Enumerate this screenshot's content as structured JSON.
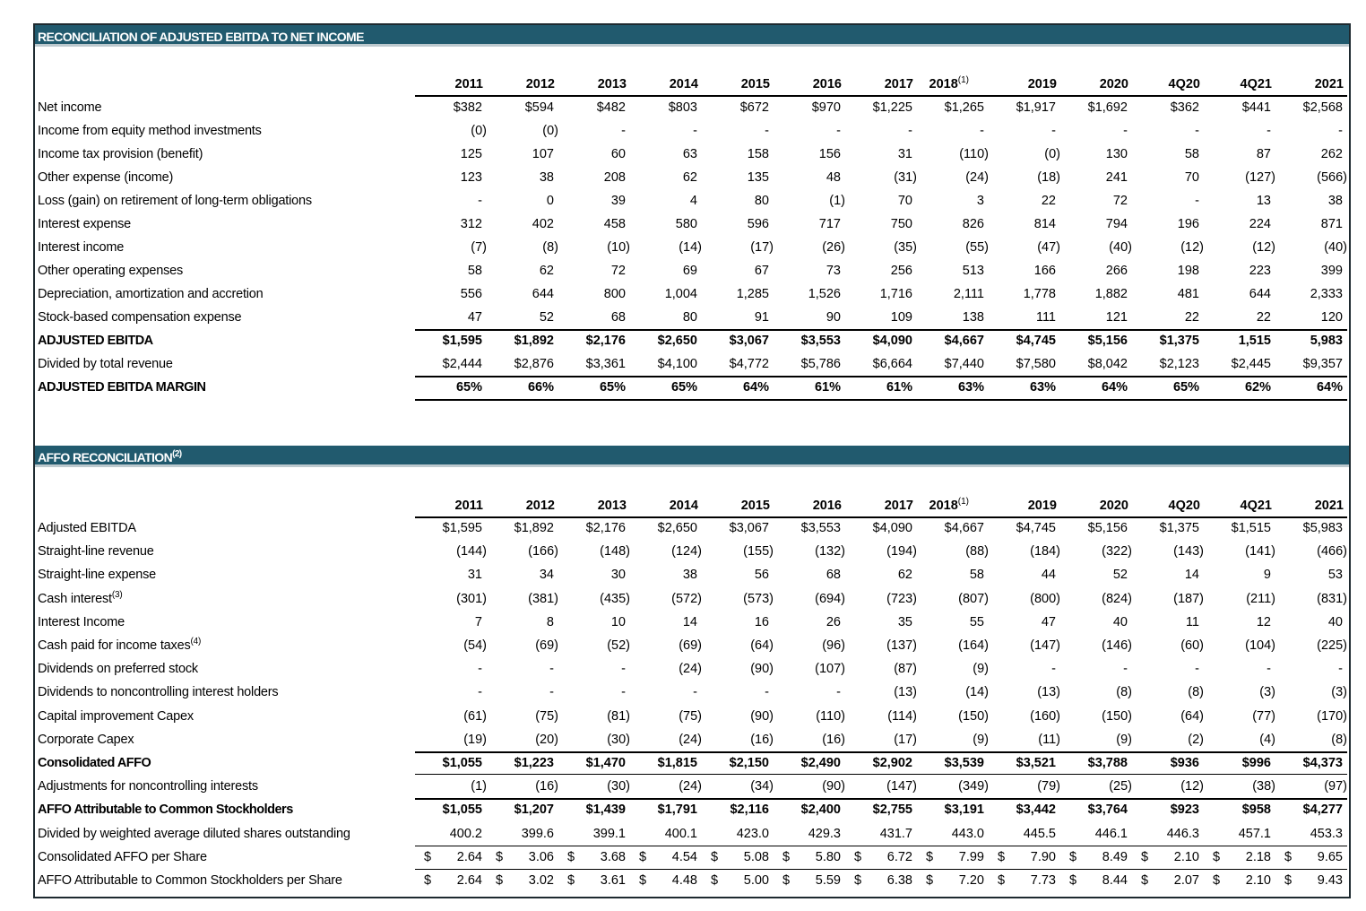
{
  "sections": [
    {
      "title": "RECONCILIATION OF ADJUSTED EBITDA TO NET INCOME",
      "columns": [
        {
          "label": "2011"
        },
        {
          "label": "2012"
        },
        {
          "label": "2013"
        },
        {
          "label": "2014"
        },
        {
          "label": "2015"
        },
        {
          "label": "2016"
        },
        {
          "label": "2017"
        },
        {
          "label": "2018",
          "note": "(1)"
        },
        {
          "label": "2019"
        },
        {
          "label": "2020"
        },
        {
          "label": "4Q20"
        },
        {
          "label": "4Q21"
        },
        {
          "label": "2021"
        }
      ],
      "rows": [
        {
          "label": "Net income",
          "values": [
            "$382",
            "$594",
            "$482",
            "$803",
            "$672",
            "$970",
            "$1,225",
            "$1,265",
            "$1,917",
            "$1,692",
            "$362",
            "$441",
            "$2,568"
          ]
        },
        {
          "label": "Income from equity method investments",
          "values": [
            "(0)",
            "(0)",
            "-",
            "-",
            "-",
            "-",
            "-",
            "-",
            "-",
            "-",
            "-",
            "-",
            "-"
          ]
        },
        {
          "label": "Income tax provision (benefit)",
          "values": [
            "125",
            "107",
            "60",
            "63",
            "158",
            "156",
            "31",
            "(110)",
            "(0)",
            "130",
            "58",
            "87",
            "262"
          ]
        },
        {
          "label": "Other expense (income)",
          "values": [
            "123",
            "38",
            "208",
            "62",
            "135",
            "48",
            "(31)",
            "(24)",
            "(18)",
            "241",
            "70",
            "(127)",
            "(566)"
          ]
        },
        {
          "label": "Loss (gain) on retirement of long-term obligations",
          "values": [
            "-",
            "0",
            "39",
            "4",
            "80",
            "(1)",
            "70",
            "3",
            "22",
            "72",
            "-",
            "13",
            "38"
          ]
        },
        {
          "label": "Interest expense",
          "values": [
            "312",
            "402",
            "458",
            "580",
            "596",
            "717",
            "750",
            "826",
            "814",
            "794",
            "196",
            "224",
            "871"
          ]
        },
        {
          "label": "Interest income",
          "values": [
            "(7)",
            "(8)",
            "(10)",
            "(14)",
            "(17)",
            "(26)",
            "(35)",
            "(55)",
            "(47)",
            "(40)",
            "(12)",
            "(12)",
            "(40)"
          ]
        },
        {
          "label": "Other operating expenses",
          "values": [
            "58",
            "62",
            "72",
            "69",
            "67",
            "73",
            "256",
            "513",
            "166",
            "266",
            "198",
            "223",
            "399"
          ]
        },
        {
          "label": "Depreciation, amortization and accretion",
          "values": [
            "556",
            "644",
            "800",
            "1,004",
            "1,285",
            "1,526",
            "1,716",
            "2,111",
            "1,778",
            "1,882",
            "481",
            "644",
            "2,333"
          ]
        },
        {
          "label": "Stock-based compensation expense",
          "values": [
            "47",
            "52",
            "68",
            "80",
            "91",
            "90",
            "109",
            "138",
            "111",
            "121",
            "22",
            "22",
            "120"
          ]
        },
        {
          "label": "ADJUSTED EBITDA",
          "bold": true,
          "values": [
            "$1,595",
            "$1,892",
            "$2,176",
            "$2,650",
            "$3,067",
            "$3,553",
            "$4,090",
            "$4,667",
            "$4,745",
            "$5,156",
            "$1,375",
            "1,515",
            "5,983"
          ]
        },
        {
          "label": "Divided by total revenue",
          "values": [
            "$2,444",
            "$2,876",
            "$3,361",
            "$4,100",
            "$4,772",
            "$5,786",
            "$6,664",
            "$7,440",
            "$7,580",
            "$8,042",
            "$2,123",
            "$2,445",
            "$9,357"
          ]
        },
        {
          "label": "ADJUSTED EBITDA MARGIN",
          "bold": true,
          "values": [
            "65%",
            "66%",
            "65%",
            "65%",
            "64%",
            "61%",
            "61%",
            "63%",
            "63%",
            "64%",
            "65%",
            "62%",
            "64%"
          ]
        }
      ]
    },
    {
      "title": "AFFO RECONCILIATION",
      "title_note": "(2)",
      "columns": [
        {
          "label": "2011"
        },
        {
          "label": "2012"
        },
        {
          "label": "2013"
        },
        {
          "label": "2014"
        },
        {
          "label": "2015"
        },
        {
          "label": "2016"
        },
        {
          "label": "2017"
        },
        {
          "label": "2018",
          "note": "(1)"
        },
        {
          "label": "2019"
        },
        {
          "label": "2020"
        },
        {
          "label": "4Q20"
        },
        {
          "label": "4Q21"
        },
        {
          "label": "2021"
        }
      ],
      "rows": [
        {
          "label": "Adjusted EBITDA",
          "values": [
            "$1,595",
            "$1,892",
            "$2,176",
            "$2,650",
            "$3,067",
            "$3,553",
            "$4,090",
            "$4,667",
            "$4,745",
            "$5,156",
            "$1,375",
            "$1,515",
            "$5,983"
          ]
        },
        {
          "label": "Straight-line revenue",
          "values": [
            "(144)",
            "(166)",
            "(148)",
            "(124)",
            "(155)",
            "(132)",
            "(194)",
            "(88)",
            "(184)",
            "(322)",
            "(143)",
            "(141)",
            "(466)"
          ]
        },
        {
          "label": "Straight-line expense",
          "values": [
            "31",
            "34",
            "30",
            "38",
            "56",
            "68",
            "62",
            "58",
            "44",
            "52",
            "14",
            "9",
            "53"
          ]
        },
        {
          "label": "Cash interest",
          "note": "(3)",
          "values": [
            "(301)",
            "(381)",
            "(435)",
            "(572)",
            "(573)",
            "(694)",
            "(723)",
            "(807)",
            "(800)",
            "(824)",
            "(187)",
            "(211)",
            "(831)"
          ]
        },
        {
          "label": "Interest Income",
          "values": [
            "7",
            "8",
            "10",
            "14",
            "16",
            "26",
            "35",
            "55",
            "47",
            "40",
            "11",
            "12",
            "40"
          ]
        },
        {
          "label": "Cash paid for income taxes",
          "note": "(4)",
          "values": [
            "(54)",
            "(69)",
            "(52)",
            "(69)",
            "(64)",
            "(96)",
            "(137)",
            "(164)",
            "(147)",
            "(146)",
            "(60)",
            "(104)",
            "(225)"
          ]
        },
        {
          "label": "Dividends on preferred stock",
          "values": [
            "-",
            "-",
            "-",
            "(24)",
            "(90)",
            "(107)",
            "(87)",
            "(9)",
            "-",
            "-",
            "-",
            "-",
            "-"
          ]
        },
        {
          "label": "Dividends to noncontrolling interest holders",
          "values": [
            "-",
            "-",
            "-",
            "-",
            "-",
            "-",
            "(13)",
            "(14)",
            "(13)",
            "(8)",
            "(8)",
            "(3)",
            "(3)"
          ]
        },
        {
          "label": "Capital improvement Capex",
          "values": [
            "(61)",
            "(75)",
            "(81)",
            "(75)",
            "(90)",
            "(110)",
            "(114)",
            "(150)",
            "(160)",
            "(150)",
            "(64)",
            "(77)",
            "(170)"
          ]
        },
        {
          "label": "Corporate Capex",
          "values": [
            "(19)",
            "(20)",
            "(30)",
            "(24)",
            "(16)",
            "(16)",
            "(17)",
            "(9)",
            "(11)",
            "(9)",
            "(2)",
            "(4)",
            "(8)"
          ]
        },
        {
          "label": "Consolidated AFFO",
          "bold": true,
          "values": [
            "$1,055",
            "$1,223",
            "$1,470",
            "$1,815",
            "$2,150",
            "$2,490",
            "$2,902",
            "$3,539",
            "$3,521",
            "$3,788",
            "$936",
            "$996",
            "$4,373"
          ]
        },
        {
          "label": "Adjustments for noncontrolling interests",
          "values": [
            "(1)",
            "(16)",
            "(30)",
            "(24)",
            "(34)",
            "(90)",
            "(147)",
            "(349)",
            "(79)",
            "(25)",
            "(12)",
            "(38)",
            "(97)"
          ]
        },
        {
          "label": "AFFO Attributable to Common Stockholders",
          "bold": true,
          "values": [
            "$1,055",
            "$1,207",
            "$1,439",
            "$1,791",
            "$2,116",
            "$2,400",
            "$2,755",
            "$3,191",
            "$3,442",
            "$3,764",
            "$923",
            "$958",
            "$4,277"
          ]
        },
        {
          "label": "Divided by weighted average diluted shares outstanding",
          "values": [
            "400.2",
            "399.6",
            "399.1",
            "400.1",
            "423.0",
            "429.3",
            "431.7",
            "443.0",
            "445.5",
            "446.1",
            "446.3",
            "457.1",
            "453.3"
          ]
        },
        {
          "label": "Consolidated AFFO per Share",
          "prefix": "$",
          "values": [
            "2.64",
            "3.06",
            "3.68",
            "4.54",
            "5.08",
            "5.80",
            "6.72",
            "7.99",
            "7.90",
            "8.49",
            "2.10",
            "2.18",
            "9.65"
          ]
        },
        {
          "label": "AFFO Attributable to Common Stockholders per Share",
          "prefix": "$",
          "values": [
            "2.64",
            "3.02",
            "3.61",
            "4.48",
            "5.00",
            "5.59",
            "6.38",
            "7.20",
            "7.73",
            "8.44",
            "2.07",
            "2.10",
            "9.43"
          ]
        }
      ]
    }
  ]
}
